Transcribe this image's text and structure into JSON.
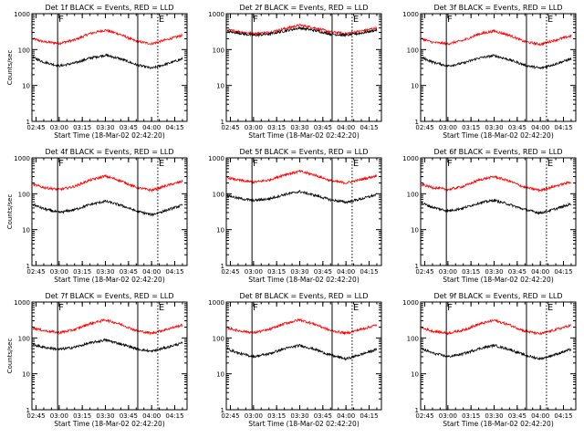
{
  "page": {
    "background": "#ffffff"
  },
  "colors": {
    "events": "#000000",
    "lld": "#ff0000",
    "axis": "#000000"
  },
  "chart_data": [
    {
      "type": "line",
      "title": "Det 1f BLACK = Events, RED = LLD",
      "xlabel": "Start Time (18-Mar-02 02:42:20)",
      "ylabel": "Counts/sec",
      "x_ticks": [
        "02:45",
        "03:00",
        "03:15",
        "03:30",
        "03:45",
        "04:00",
        "04:15"
      ],
      "y_ticks": [
        "1",
        "10",
        "100",
        "1000"
      ],
      "y_scale": "log",
      "ylim": [
        1,
        1000
      ],
      "xlim": [
        "02:42:20",
        "04:23:00"
      ],
      "markers": [
        {
          "t": "02:59",
          "style": "solid",
          "label": "F"
        },
        {
          "t": "03:51",
          "style": "solid",
          "label": ""
        },
        {
          "t": "04:04",
          "style": "dotted",
          "label": "E"
        }
      ],
      "series": [
        {
          "color": "#ff0000",
          "x": [
            "02:43",
            "02:50",
            "03:00",
            "03:10",
            "03:20",
            "03:30",
            "03:40",
            "03:50",
            "04:00",
            "04:10",
            "04:20"
          ],
          "y": [
            200,
            165,
            150,
            185,
            280,
            350,
            260,
            170,
            145,
            190,
            250
          ]
        },
        {
          "color": "#000000",
          "x": [
            "02:43",
            "02:50",
            "03:00",
            "03:10",
            "03:20",
            "03:30",
            "03:40",
            "03:50",
            "04:00",
            "04:10",
            "04:20"
          ],
          "y": [
            60,
            45,
            35,
            42,
            58,
            70,
            55,
            38,
            30,
            40,
            55
          ]
        }
      ]
    },
    {
      "type": "line",
      "title": "Det 2f BLACK = Events, RED = LLD",
      "xlabel": "Start Time (18-Mar-02 02:42:20)",
      "ylabel": "",
      "x_ticks": [
        "02:45",
        "03:00",
        "03:15",
        "03:30",
        "03:45",
        "04:00",
        "04:15"
      ],
      "y_ticks": [
        "1",
        "10",
        "100",
        "1000"
      ],
      "y_scale": "log",
      "ylim": [
        1,
        1000
      ],
      "xlim": [
        "02:42:20",
        "04:23:00"
      ],
      "markers": [
        {
          "t": "02:59",
          "style": "solid",
          "label": "F"
        },
        {
          "t": "03:51",
          "style": "solid",
          "label": ""
        },
        {
          "t": "04:04",
          "style": "dotted",
          "label": "E"
        }
      ],
      "series": [
        {
          "color": "#ff0000",
          "x": [
            "02:43",
            "02:50",
            "03:00",
            "03:10",
            "03:20",
            "03:30",
            "03:40",
            "03:50",
            "04:00",
            "04:10",
            "04:20"
          ],
          "y": [
            350,
            320,
            280,
            300,
            380,
            480,
            400,
            310,
            280,
            330,
            400
          ]
        },
        {
          "color": "#000000",
          "x": [
            "02:43",
            "02:50",
            "03:00",
            "03:10",
            "03:20",
            "03:30",
            "03:40",
            "03:50",
            "04:00",
            "04:10",
            "04:20"
          ],
          "y": [
            320,
            290,
            250,
            270,
            330,
            400,
            340,
            270,
            250,
            290,
            350
          ]
        }
      ]
    },
    {
      "type": "line",
      "title": "Det 3f BLACK = Events, RED = LLD",
      "xlabel": "Start Time (18-Mar-02 02:42:20)",
      "ylabel": "",
      "x_ticks": [
        "02:45",
        "03:00",
        "03:15",
        "03:30",
        "03:45",
        "04:00",
        "04:15"
      ],
      "y_ticks": [
        "1",
        "10",
        "100",
        "1000"
      ],
      "y_scale": "log",
      "ylim": [
        1,
        1000
      ],
      "xlim": [
        "02:42:20",
        "04:23:00"
      ],
      "markers": [
        {
          "t": "02:59",
          "style": "solid",
          "label": "F"
        },
        {
          "t": "03:51",
          "style": "solid",
          "label": ""
        },
        {
          "t": "04:04",
          "style": "dotted",
          "label": "E"
        }
      ],
      "series": [
        {
          "color": "#ff0000",
          "x": [
            "02:43",
            "02:50",
            "03:00",
            "03:10",
            "03:20",
            "03:30",
            "03:40",
            "03:50",
            "04:00",
            "04:10",
            "04:20"
          ],
          "y": [
            200,
            160,
            145,
            180,
            270,
            330,
            250,
            165,
            140,
            185,
            240
          ]
        },
        {
          "color": "#000000",
          "x": [
            "02:43",
            "02:50",
            "03:00",
            "03:10",
            "03:20",
            "03:30",
            "03:40",
            "03:50",
            "04:00",
            "04:10",
            "04:20"
          ],
          "y": [
            60,
            45,
            35,
            42,
            58,
            68,
            52,
            37,
            30,
            40,
            55
          ]
        }
      ]
    },
    {
      "type": "line",
      "title": "Det 4f BLACK = Events, RED = LLD",
      "xlabel": "Start Time (18-Mar-02 02:42:20)",
      "ylabel": "Counts/sec",
      "x_ticks": [
        "02:45",
        "03:00",
        "03:15",
        "03:30",
        "03:45",
        "04:00",
        "04:15"
      ],
      "y_ticks": [
        "1",
        "10",
        "100",
        "1000"
      ],
      "y_scale": "log",
      "ylim": [
        1,
        1000
      ],
      "xlim": [
        "02:42:20",
        "04:23:00"
      ],
      "markers": [
        {
          "t": "02:59",
          "style": "solid",
          "label": "F"
        },
        {
          "t": "03:51",
          "style": "solid",
          "label": ""
        },
        {
          "t": "04:04",
          "style": "dotted",
          "label": "E"
        }
      ],
      "series": [
        {
          "color": "#ff0000",
          "x": [
            "02:43",
            "02:50",
            "03:00",
            "03:10",
            "03:20",
            "03:30",
            "03:40",
            "03:50",
            "04:00",
            "04:10",
            "04:20"
          ],
          "y": [
            180,
            150,
            130,
            160,
            240,
            310,
            230,
            150,
            125,
            170,
            220
          ]
        },
        {
          "color": "#000000",
          "x": [
            "02:43",
            "02:50",
            "03:00",
            "03:10",
            "03:20",
            "03:30",
            "03:40",
            "03:50",
            "04:00",
            "04:10",
            "04:20"
          ],
          "y": [
            50,
            38,
            30,
            36,
            50,
            62,
            48,
            33,
            26,
            35,
            48
          ]
        }
      ]
    },
    {
      "type": "line",
      "title": "Det 5f BLACK = Events, RED = LLD",
      "xlabel": "Start Time (18-Mar-02 02:42:20)",
      "ylabel": "",
      "x_ticks": [
        "02:45",
        "03:00",
        "03:15",
        "03:30",
        "03:45",
        "04:00",
        "04:15"
      ],
      "y_ticks": [
        "1",
        "10",
        "100",
        "1000"
      ],
      "y_scale": "log",
      "ylim": [
        1,
        1000
      ],
      "xlim": [
        "02:42:20",
        "04:23:00"
      ],
      "markers": [
        {
          "t": "02:59",
          "style": "solid",
          "label": "F"
        },
        {
          "t": "03:51",
          "style": "solid",
          "label": ""
        },
        {
          "t": "04:04",
          "style": "dotted",
          "label": "E"
        }
      ],
      "series": [
        {
          "color": "#ff0000",
          "x": [
            "02:43",
            "02:50",
            "03:00",
            "03:10",
            "03:20",
            "03:30",
            "03:40",
            "03:50",
            "04:00",
            "04:10",
            "04:20"
          ],
          "y": [
            280,
            240,
            210,
            240,
            340,
            420,
            330,
            230,
            200,
            250,
            320
          ]
        },
        {
          "color": "#000000",
          "x": [
            "02:43",
            "02:50",
            "03:00",
            "03:10",
            "03:20",
            "03:30",
            "03:40",
            "03:50",
            "04:00",
            "04:10",
            "04:20"
          ],
          "y": [
            90,
            75,
            65,
            72,
            95,
            115,
            90,
            68,
            58,
            72,
            95
          ]
        }
      ]
    },
    {
      "type": "line",
      "title": "Det 6f BLACK = Events, RED = LLD",
      "xlabel": "Start Time (18-Mar-02 02:42:20)",
      "ylabel": "",
      "x_ticks": [
        "02:45",
        "03:00",
        "03:15",
        "03:30",
        "03:45",
        "04:00",
        "04:15"
      ],
      "y_ticks": [
        "1",
        "10",
        "100",
        "1000"
      ],
      "y_scale": "log",
      "ylim": [
        1,
        1000
      ],
      "xlim": [
        "02:42:20",
        "04:23:00"
      ],
      "markers": [
        {
          "t": "02:59",
          "style": "solid",
          "label": "F"
        },
        {
          "t": "03:51",
          "style": "solid",
          "label": ""
        },
        {
          "t": "04:04",
          "style": "dotted",
          "label": "E"
        }
      ],
      "series": [
        {
          "color": "#ff0000",
          "x": [
            "02:43",
            "02:50",
            "03:00",
            "03:10",
            "03:20",
            "03:30",
            "03:40",
            "03:50",
            "04:00",
            "04:10",
            "04:20"
          ],
          "y": [
            180,
            150,
            130,
            160,
            240,
            300,
            225,
            150,
            125,
            165,
            215
          ]
        },
        {
          "color": "#000000",
          "x": [
            "02:43",
            "02:50",
            "03:00",
            "03:10",
            "03:20",
            "03:30",
            "03:40",
            "03:50",
            "04:00",
            "04:10",
            "04:20"
          ],
          "y": [
            55,
            42,
            33,
            40,
            55,
            66,
            50,
            36,
            29,
            38,
            52
          ]
        }
      ]
    },
    {
      "type": "line",
      "title": "Det 7f BLACK = Events, RED = LLD",
      "xlabel": "Start Time (18-Mar-02 02:42:20)",
      "ylabel": "Counts/sec",
      "x_ticks": [
        "02:45",
        "03:00",
        "03:15",
        "03:30",
        "03:45",
        "04:00",
        "04:15"
      ],
      "y_ticks": [
        "1",
        "10",
        "100",
        "1000"
      ],
      "y_scale": "log",
      "ylim": [
        1,
        1000
      ],
      "xlim": [
        "02:42:20",
        "04:23:00"
      ],
      "markers": [
        {
          "t": "02:59",
          "style": "solid",
          "label": "F"
        },
        {
          "t": "03:51",
          "style": "solid",
          "label": ""
        },
        {
          "t": "04:04",
          "style": "dotted",
          "label": "E"
        }
      ],
      "series": [
        {
          "color": "#ff0000",
          "x": [
            "02:43",
            "02:50",
            "03:00",
            "03:10",
            "03:20",
            "03:30",
            "03:40",
            "03:50",
            "04:00",
            "04:10",
            "04:20"
          ],
          "y": [
            190,
            160,
            140,
            170,
            250,
            320,
            240,
            160,
            135,
            175,
            230
          ]
        },
        {
          "color": "#000000",
          "x": [
            "02:43",
            "02:50",
            "03:00",
            "03:10",
            "03:20",
            "03:30",
            "03:40",
            "03:50",
            "04:00",
            "04:10",
            "04:20"
          ],
          "y": [
            65,
            55,
            48,
            55,
            72,
            88,
            68,
            50,
            42,
            55,
            72
          ]
        }
      ]
    },
    {
      "type": "line",
      "title": "Det 8f BLACK = Events, RED = LLD",
      "xlabel": "Start Time (18-Mar-02 02:42:20)",
      "ylabel": "",
      "x_ticks": [
        "02:45",
        "03:00",
        "03:15",
        "03:30",
        "03:45",
        "04:00",
        "04:15"
      ],
      "y_ticks": [
        "1",
        "10",
        "100",
        "1000"
      ],
      "y_scale": "log",
      "ylim": [
        1,
        1000
      ],
      "xlim": [
        "02:42:20",
        "04:23:00"
      ],
      "markers": [
        {
          "t": "02:59",
          "style": "solid",
          "label": "F"
        },
        {
          "t": "03:51",
          "style": "solid",
          "label": ""
        },
        {
          "t": "04:04",
          "style": "dotted",
          "label": "E"
        }
      ],
      "series": [
        {
          "color": "#ff0000",
          "x": [
            "02:43",
            "02:50",
            "03:00",
            "03:10",
            "03:20",
            "03:30",
            "03:40",
            "03:50",
            "04:00",
            "04:10",
            "04:20"
          ],
          "y": [
            190,
            160,
            140,
            170,
            250,
            320,
            240,
            160,
            135,
            175,
            230
          ]
        },
        {
          "color": "#000000",
          "x": [
            "02:43",
            "02:50",
            "03:00",
            "03:10",
            "03:20",
            "03:30",
            "03:40",
            "03:50",
            "04:00",
            "04:10",
            "04:20"
          ],
          "y": [
            50,
            38,
            30,
            36,
            50,
            62,
            48,
            33,
            26,
            35,
            48
          ]
        }
      ]
    },
    {
      "type": "line",
      "title": "Det 9f BLACK = Events, RED = LLD",
      "xlabel": "Start Time (18-Mar-02 02:42:20)",
      "ylabel": "",
      "x_ticks": [
        "02:45",
        "03:00",
        "03:15",
        "03:30",
        "03:45",
        "04:00",
        "04:15"
      ],
      "y_ticks": [
        "1",
        "10",
        "100",
        "1000"
      ],
      "y_scale": "log",
      "ylim": [
        1,
        1000
      ],
      "xlim": [
        "02:42:20",
        "04:23:00"
      ],
      "markers": [
        {
          "t": "02:59",
          "style": "solid",
          "label": "F"
        },
        {
          "t": "03:51",
          "style": "solid",
          "label": ""
        },
        {
          "t": "04:04",
          "style": "dotted",
          "label": "E"
        }
      ],
      "series": [
        {
          "color": "#ff0000",
          "x": [
            "02:43",
            "02:50",
            "03:00",
            "03:10",
            "03:20",
            "03:30",
            "03:40",
            "03:50",
            "04:00",
            "04:10",
            "04:20"
          ],
          "y": [
            190,
            155,
            135,
            165,
            240,
            310,
            230,
            155,
            130,
            170,
            225
          ]
        },
        {
          "color": "#000000",
          "x": [
            "02:43",
            "02:50",
            "03:00",
            "03:10",
            "03:20",
            "03:30",
            "03:40",
            "03:50",
            "04:00",
            "04:10",
            "04:20"
          ],
          "y": [
            50,
            38,
            30,
            36,
            50,
            62,
            48,
            33,
            26,
            35,
            48
          ]
        }
      ]
    }
  ]
}
